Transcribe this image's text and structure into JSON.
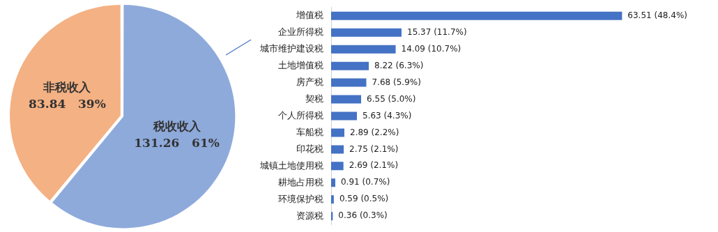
{
  "chart_data": [
    {
      "type": "pie",
      "categories": [
        "税收收入",
        "非税收入"
      ],
      "values": [
        131.26,
        83.84
      ],
      "colors": [
        "#8eaadb",
        "#f4b183"
      ],
      "value_labels": [
        "131.26   61%",
        "83.84   39%"
      ],
      "legend": false
    },
    {
      "type": "bar",
      "orientation": "horizontal",
      "categories": [
        "增值税",
        "企业所得税",
        "城市维护建设税",
        "土地增值税",
        "房产税",
        "契税",
        "个人所得税",
        "车船税",
        "印花税",
        "城镇土地使用税",
        "耕地占用税",
        "环境保护税",
        "资源税"
      ],
      "values": [
        63.51,
        15.37,
        14.09,
        8.22,
        7.68,
        6.55,
        5.63,
        2.89,
        2.75,
        2.69,
        0.91,
        0.59,
        0.36
      ],
      "color": "#4472c4",
      "value_labels": [
        "63.51 (48.4%)",
        "15.37 (11.7%)",
        "14.09 (10.7%)",
        "8.22 (6.3%)",
        "7.68 (5.9%)",
        "6.55 (5.0%)",
        "5.63 (4.3%)",
        "2.89 (2.2%)",
        "2.75 (2.1%)",
        "2.69 (2.1%)",
        "0.91 (0.7%)",
        "0.59 (0.5%)",
        "0.36 (0.3%)"
      ],
      "legend": false,
      "tick_labels": "y"
    }
  ]
}
